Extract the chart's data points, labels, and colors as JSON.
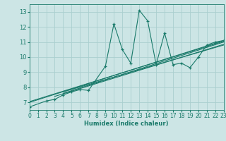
{
  "xlabel": "Humidex (Indice chaleur)",
  "xlim": [
    0,
    23
  ],
  "ylim": [
    6.5,
    13.5
  ],
  "xticks": [
    0,
    1,
    2,
    3,
    4,
    5,
    6,
    7,
    8,
    9,
    10,
    11,
    12,
    13,
    14,
    15,
    16,
    17,
    18,
    19,
    20,
    21,
    22,
    23
  ],
  "yticks": [
    7,
    8,
    9,
    10,
    11,
    12,
    13
  ],
  "bg_color": "#cce5e5",
  "grid_color": "#aacfcf",
  "line_color": "#1a7a6a",
  "jagged_line": {
    "x": [
      0,
      2,
      3,
      4,
      5,
      6,
      7,
      9,
      10,
      11,
      12,
      13,
      14,
      15,
      16,
      17,
      18,
      19,
      20,
      21,
      22,
      23
    ],
    "y": [
      6.7,
      7.1,
      7.2,
      7.5,
      7.7,
      7.85,
      7.8,
      9.4,
      12.2,
      10.5,
      9.6,
      13.1,
      12.4,
      9.5,
      11.6,
      9.5,
      9.6,
      9.3,
      10.0,
      10.8,
      11.0,
      11.1
    ]
  },
  "regression_lines": [
    {
      "x": [
        0,
        23
      ],
      "y": [
        7.0,
        11.1
      ]
    },
    {
      "x": [
        0,
        23
      ],
      "y": [
        7.05,
        11.05
      ]
    },
    {
      "x": [
        3,
        23
      ],
      "y": [
        7.4,
        10.85
      ]
    },
    {
      "x": [
        4,
        23
      ],
      "y": [
        7.6,
        11.0
      ]
    },
    {
      "x": [
        4,
        23
      ],
      "y": [
        7.7,
        10.8
      ]
    }
  ],
  "xlabel_fontsize": 6,
  "tick_fontsize": 5.5,
  "ytick_fontsize": 6
}
